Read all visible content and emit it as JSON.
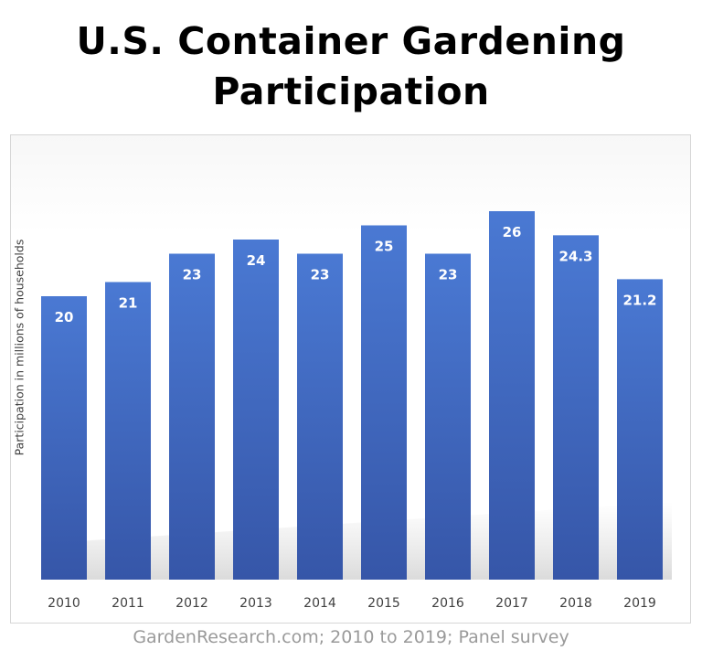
{
  "title": "U.S. Container Gardening Participation",
  "source": "GardenResearch.com; 2010 to 2019; Panel survey",
  "colors": {
    "bar_top": "#4a79d3",
    "bar_bottom": "#3656a8",
    "data_label": "#ffffff",
    "tick_label": "#404040"
  },
  "chart_data": {
    "type": "bar",
    "title": "U.S. Container Gardening Participation",
    "xlabel": "",
    "ylabel": "Participation in millions of households",
    "categories": [
      "2010",
      "2011",
      "2012",
      "2013",
      "2014",
      "2015",
      "2016",
      "2017",
      "2018",
      "2019"
    ],
    "values": [
      20,
      21,
      23,
      24,
      23,
      25,
      23,
      26,
      24.3,
      21.2
    ],
    "data_labels": [
      "20",
      "21",
      "23",
      "24",
      "23",
      "25",
      "23",
      "26",
      "24.3",
      "21.2"
    ],
    "ylim": [
      0,
      26
    ],
    "grid": false,
    "legend": "none"
  }
}
